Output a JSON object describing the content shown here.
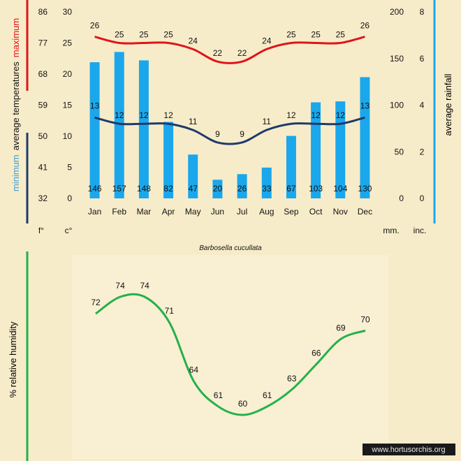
{
  "caption": "Barbosella cucullata",
  "watermark": "www.hortusorchis.org",
  "colors": {
    "max": "#e0141b",
    "min": "#1f3a6b",
    "rain": "#1aa7ec",
    "humidity": "#22b14c",
    "background": "#f7ecc9"
  },
  "chart_data": [
    {
      "type": "bar",
      "title": "",
      "categories": [
        "Jan",
        "Feb",
        "Mar",
        "Apr",
        "May",
        "Jun",
        "Jul",
        "Aug",
        "Sep",
        "Oct",
        "Nov",
        "Dec"
      ],
      "left_axis_fahrenheit": {
        "unit": "f°",
        "ticks": [
          "32",
          "41",
          "50",
          "59",
          "68",
          "77",
          "86"
        ]
      },
      "left_axis_celsius": {
        "unit": "c°",
        "ticks": [
          "0",
          "5",
          "10",
          "15",
          "20",
          "25",
          "30"
        ],
        "ylim": [
          0,
          30
        ]
      },
      "right_axis_mm": {
        "unit": "mm.",
        "ticks": [
          "0",
          "50",
          "100",
          "150",
          "200"
        ],
        "ylim": [
          0,
          200
        ]
      },
      "right_axis_inch": {
        "unit": "inc.",
        "ticks": [
          "0",
          "2",
          "4",
          "6",
          "8"
        ]
      },
      "ylabel_left": {
        "minimum": "minimum",
        "average": "average  temperatures",
        "maximum": "maximum"
      },
      "ylabel_right": "average rainfall",
      "series": [
        {
          "name": "maximum",
          "kind": "line",
          "axis": "celsius",
          "values": [
            26,
            25,
            25,
            25,
            24,
            22,
            22,
            24,
            25,
            25,
            25,
            26
          ]
        },
        {
          "name": "minimum",
          "kind": "line",
          "axis": "celsius",
          "values": [
            13,
            12,
            12,
            12,
            11,
            9,
            9,
            11,
            12,
            12,
            12,
            13
          ]
        },
        {
          "name": "average rainfall",
          "kind": "bar",
          "axis": "mm",
          "values": [
            146,
            157,
            148,
            82,
            47,
            20,
            26,
            33,
            67,
            103,
            104,
            130
          ]
        }
      ]
    },
    {
      "type": "line",
      "title": "",
      "categories": [
        "Jan",
        "Feb",
        "Mar",
        "Apr",
        "May",
        "Jun",
        "Jul",
        "Aug",
        "Sep",
        "Oct",
        "Nov",
        "Dec"
      ],
      "ylabel": "%  relative humidity",
      "series": [
        {
          "name": "relative humidity",
          "values": [
            72,
            74,
            74,
            71,
            64,
            61,
            60,
            61,
            63,
            66,
            69,
            70
          ]
        }
      ]
    }
  ]
}
